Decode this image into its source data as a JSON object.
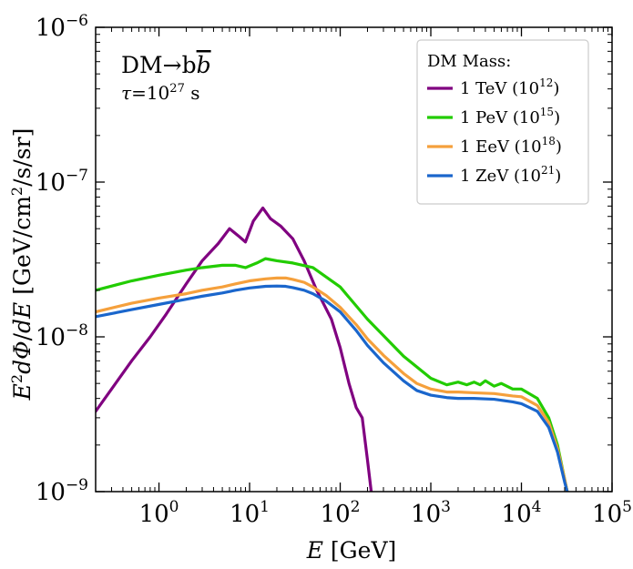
{
  "chart_data": {
    "type": "line",
    "x_scale": "log",
    "y_scale": "log",
    "xlim": [
      0.2,
      100000
    ],
    "ylim": [
      1e-09,
      1e-06
    ],
    "x_ticks": [
      {
        "base": "10",
        "exp": "0",
        "value": 1
      },
      {
        "base": "10",
        "exp": "1",
        "value": 10
      },
      {
        "base": "10",
        "exp": "2",
        "value": 100
      },
      {
        "base": "10",
        "exp": "3",
        "value": 1000
      },
      {
        "base": "10",
        "exp": "4",
        "value": 10000
      },
      {
        "base": "10",
        "exp": "5",
        "value": 100000
      }
    ],
    "y_ticks": [
      {
        "base": "10",
        "exp": "−9",
        "value": 1e-09
      },
      {
        "base": "10",
        "exp": "−8",
        "value": 1e-08
      },
      {
        "base": "10",
        "exp": "−7",
        "value": 1e-07
      },
      {
        "base": "10",
        "exp": "−6",
        "value": 1e-06
      }
    ],
    "xlabel": {
      "var": "E",
      "unit": " [GeV]"
    },
    "ylabel": {
      "E": "E",
      "two": "2",
      "dphi": "dΦ",
      "slash": "/",
      "dE": "dE",
      "unit_pre": " [GeV/cm",
      "unit_exp": "2",
      "unit_post": "/s/sr]"
    },
    "annotation": {
      "channel": "DM→b",
      "channel_bar": "b",
      "tau_label": "τ",
      "tau_eq": "=10",
      "tau_exp": "27",
      "tau_unit": " s"
    },
    "legend": {
      "title": "DM Mass:",
      "position": "top-right"
    },
    "series": [
      {
        "name": "1 TeV",
        "mass_exp": "12",
        "color": "#800080",
        "x": [
          0.2,
          0.3,
          0.5,
          0.8,
          1.2,
          2,
          3,
          4.5,
          6,
          7.5,
          9,
          11,
          14,
          17,
          22,
          30,
          40,
          55,
          80,
          100,
          125,
          150,
          175,
          200,
          220
        ],
        "y": [
          3.3e-09,
          4.6e-09,
          7e-09,
          1e-08,
          1.4e-08,
          2.2e-08,
          3.1e-08,
          4e-08,
          5e-08,
          4.5e-08,
          4.1e-08,
          5.6e-08,
          6.8e-08,
          5.8e-08,
          5.2e-08,
          4.3e-08,
          3.1e-08,
          2e-08,
          1.3e-08,
          8.5e-09,
          5e-09,
          3.5e-09,
          3e-09,
          1.6e-09,
          1e-09
        ]
      },
      {
        "name": "1 PeV",
        "mass_exp": "15",
        "color": "#22cc00",
        "x": [
          0.2,
          0.5,
          1,
          2,
          3,
          5,
          7,
          9,
          12,
          15,
          20,
          30,
          50,
          100,
          200,
          500,
          1000,
          1500,
          2000,
          2500,
          3000,
          3500,
          4000,
          5000,
          6000,
          8000,
          10000,
          15000,
          20000,
          25000,
          30000,
          32000
        ],
        "y": [
          2e-08,
          2.3e-08,
          2.5e-08,
          2.7e-08,
          2.8e-08,
          2.9e-08,
          2.9e-08,
          2.8e-08,
          3e-08,
          3.2e-08,
          3.1e-08,
          3e-08,
          2.8e-08,
          2.1e-08,
          1.3e-08,
          7.5e-09,
          5.4e-09,
          4.9e-09,
          5.1e-09,
          4.9e-09,
          5.1e-09,
          4.9e-09,
          5.2e-09,
          4.8e-09,
          5e-09,
          4.6e-09,
          4.6e-09,
          4e-09,
          3e-09,
          2e-09,
          1.2e-09,
          1e-09
        ]
      },
      {
        "name": "1 EeV",
        "mass_exp": "18",
        "color": "#f5a03c",
        "x": [
          0.2,
          0.5,
          1,
          2,
          3,
          5,
          7,
          10,
          15,
          20,
          25,
          30,
          40,
          50,
          70,
          100,
          150,
          200,
          300,
          500,
          700,
          1000,
          1500,
          2000,
          3000,
          5000,
          8000,
          10000,
          15000,
          20000,
          25000,
          30000,
          32000
        ],
        "y": [
          1.45e-08,
          1.65e-08,
          1.78e-08,
          1.9e-08,
          2e-08,
          2.1e-08,
          2.2e-08,
          2.3e-08,
          2.37e-08,
          2.4e-08,
          2.4e-08,
          2.35e-08,
          2.25e-08,
          2.1e-08,
          1.85e-08,
          1.55e-08,
          1.2e-08,
          9.7e-09,
          7.6e-09,
          5.8e-09,
          5e-09,
          4.6e-09,
          4.4e-09,
          4.4e-09,
          4.35e-09,
          4.3e-09,
          4.15e-09,
          4.1e-09,
          3.6e-09,
          2.8e-09,
          1.9e-09,
          1.2e-09,
          1e-09
        ]
      },
      {
        "name": "1 ZeV",
        "mass_exp": "21",
        "color": "#1a66cc",
        "x": [
          0.2,
          0.5,
          1,
          2,
          3,
          5,
          7,
          10,
          15,
          20,
          25,
          30,
          40,
          50,
          70,
          100,
          150,
          200,
          300,
          500,
          700,
          1000,
          1500,
          2000,
          3000,
          5000,
          8000,
          10000,
          15000,
          20000,
          25000,
          30000,
          32000
        ],
        "y": [
          1.35e-08,
          1.5e-08,
          1.62e-08,
          1.75e-08,
          1.83e-08,
          1.92e-08,
          2e-08,
          2.07e-08,
          2.12e-08,
          2.13e-08,
          2.12e-08,
          2.08e-08,
          2e-08,
          1.9e-08,
          1.7e-08,
          1.45e-08,
          1.1e-08,
          8.8e-09,
          6.8e-09,
          5.2e-09,
          4.5e-09,
          4.2e-09,
          4.05e-09,
          4e-09,
          4e-09,
          3.95e-09,
          3.8e-09,
          3.7e-09,
          3.3e-09,
          2.6e-09,
          1.8e-09,
          1.15e-09,
          1e-09
        ]
      }
    ]
  }
}
